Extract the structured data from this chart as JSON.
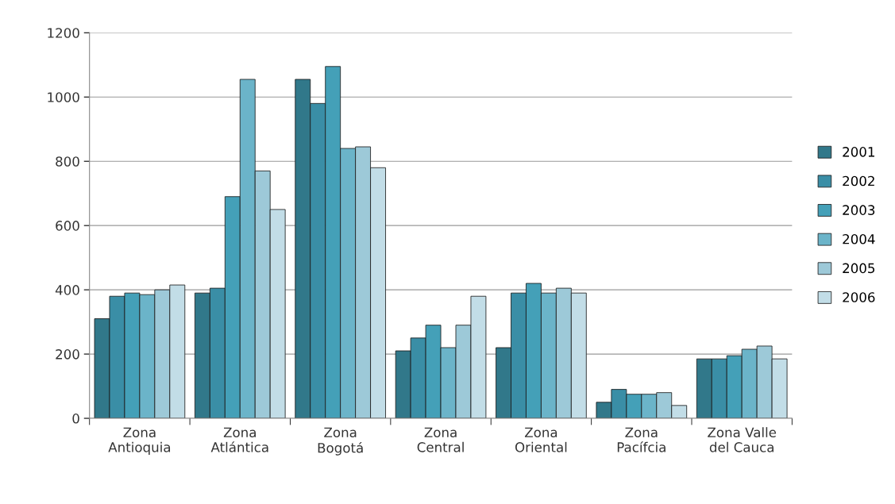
{
  "chart_data": {
    "type": "bar",
    "categories": [
      "Zona\nAntioquia",
      "Zona\nAtlántica",
      "Zona\nBogotá",
      "Zona\nCentral",
      "Zona\nOriental",
      "Zona\nPacífcia",
      "Zona Valle\ndel Cauca"
    ],
    "series": [
      {
        "name": "2001",
        "color": "#31788a",
        "values": [
          310,
          390,
          1055,
          210,
          220,
          50,
          185
        ]
      },
      {
        "name": "2002",
        "color": "#3a8ea6",
        "values": [
          380,
          405,
          980,
          250,
          390,
          90,
          185
        ]
      },
      {
        "name": "2003",
        "color": "#44a0b8",
        "values": [
          390,
          690,
          1095,
          290,
          420,
          75,
          195
        ]
      },
      {
        "name": "2004",
        "color": "#6bb4c9",
        "values": [
          385,
          1055,
          840,
          220,
          390,
          75,
          215
        ]
      },
      {
        "name": "2005",
        "color": "#9dc9d8",
        "values": [
          400,
          770,
          845,
          290,
          405,
          80,
          225
        ]
      },
      {
        "name": "2006",
        "color": "#c2dde7",
        "values": [
          415,
          650,
          780,
          380,
          390,
          40,
          185
        ]
      }
    ],
    "ylim": [
      0,
      1200
    ],
    "yticks": [
      0,
      200,
      400,
      600,
      800,
      1000,
      1200
    ],
    "grid": "y",
    "legend": "right"
  }
}
